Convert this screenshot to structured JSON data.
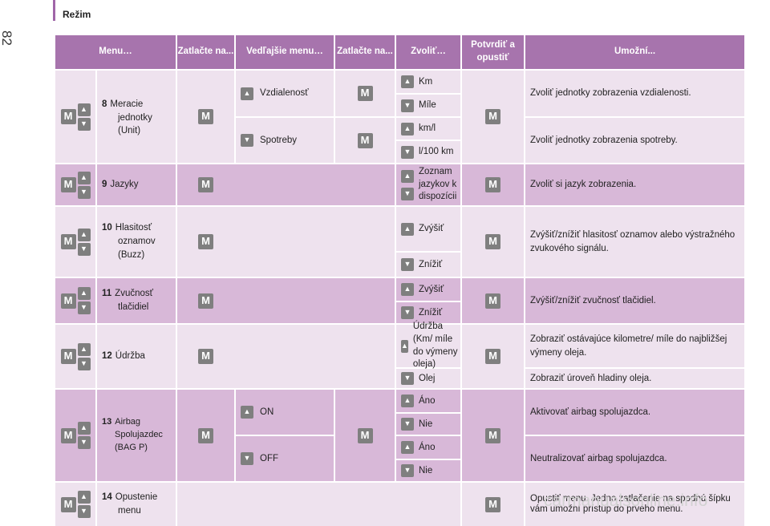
{
  "header": {
    "section_title": "Režim",
    "page_number": "82"
  },
  "table": {
    "columns": [
      "Menu…",
      "Zatlačte na...",
      "Vedľajšie menu…",
      "Zatlačte na...",
      "Zvoliť…",
      "Potvrdiť a opustiť",
      "Umožní..."
    ],
    "rows": {
      "r8": {
        "num": "8",
        "label_lines": [
          "Meracie",
          "jednotky",
          "(Unit)"
        ],
        "submenus": [
          "Vzdialenosť",
          "Spotreby"
        ],
        "options": [
          "Km",
          "Míle",
          "km/l",
          "l/100 km"
        ],
        "effects": [
          "Zvoliť jednotky zobrazenia vzdialenosti.",
          "Zvoliť jednotky zobrazenia spotreby."
        ]
      },
      "r9": {
        "num": "9",
        "label": "Jazyky",
        "option": "Zoznam jazykov k dispozícii",
        "effect": "Zvoliť si jazyk zobrazenia."
      },
      "r10": {
        "num": "10",
        "label_lines": [
          "Hlasitosť",
          "oznamov",
          "(Buzz)"
        ],
        "options": [
          "Zvýšiť",
          "Znížiť"
        ],
        "effect": "Zvýšiť/znížiť hlasitosť oznamov alebo výstražného zvukového signálu."
      },
      "r11": {
        "num": "11",
        "label_lines": [
          "Zvučnosť",
          "tlačidiel"
        ],
        "options": [
          "Zvýšiť",
          "Znížiť"
        ],
        "effect": "Zvýšiť/znížiť zvučnosť tlačidiel."
      },
      "r12": {
        "num": "12",
        "label": "Údržba",
        "options": [
          "Údržba (Km/ míle do výmeny oleja)",
          "Olej"
        ],
        "effects": [
          "Zobraziť ostávajúce kilometre/ míle do najbližšej výmeny oleja.",
          "Zobraziť úroveň hladiny oleja."
        ]
      },
      "r13": {
        "num": "13",
        "label_lines": [
          "Airbag",
          "Spolujazdec",
          "(BAG P)"
        ],
        "submenus": [
          "ON",
          "OFF"
        ],
        "options": [
          "Áno",
          "Nie",
          "Áno",
          "Nie"
        ],
        "effects": [
          "Aktivovať airbag spolujazdca.",
          "Neutralizovať airbag spolujazdca."
        ]
      },
      "r14": {
        "num": "14",
        "label_lines": [
          "Opustenie",
          "menu"
        ],
        "effect": "Opustiť menu. Jedno zatlačenie na spodnú šípku vám umožní prístup do prvého menu."
      }
    }
  },
  "buttons": {
    "m_label": "M",
    "up_glyph": "▲",
    "down_glyph": "▼"
  },
  "watermark": "carmanualsonline.info",
  "colors": {
    "header_bg": "#a774ad",
    "row_light": "#eee2ee",
    "row_dark": "#d8b8d8",
    "button_gray": "#7f7f7f"
  }
}
